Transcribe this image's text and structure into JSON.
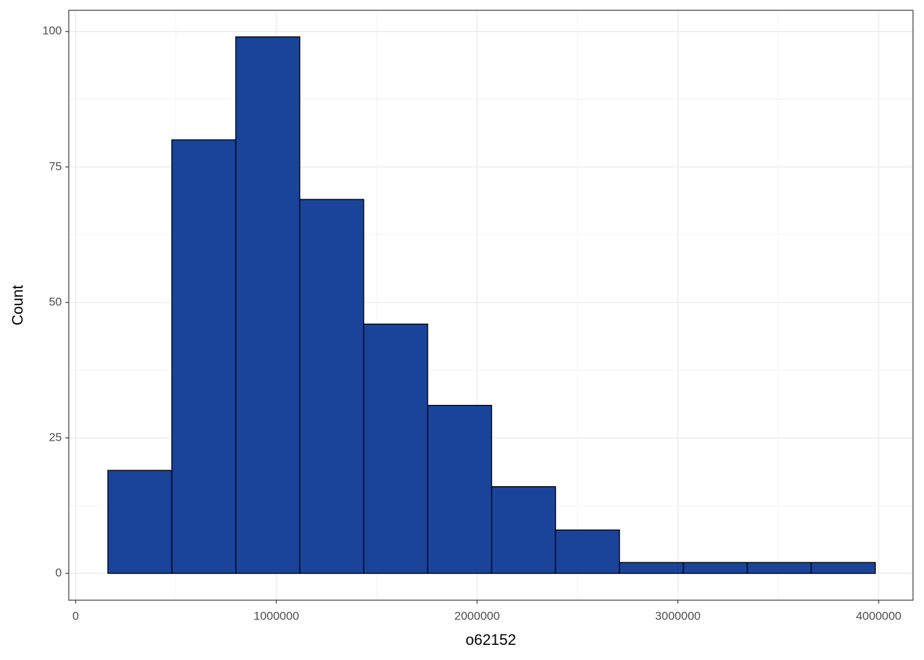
{
  "chart_data": {
    "type": "histogram",
    "x_label": "o62152",
    "y_label": "Count",
    "bins": [
      161000,
      479500,
      798000,
      1116500,
      1435000,
      1753500,
      2072000,
      2390500,
      2709000,
      3027500,
      3346000,
      3664500,
      3983000
    ],
    "counts": [
      19,
      80,
      99,
      69,
      46,
      31,
      16,
      8,
      2,
      2,
      2,
      2
    ],
    "color": "#1a4499",
    "xlim": [
      -34000,
      4171000
    ],
    "ylim": [
      -4.95,
      103.9
    ],
    "xticks": [
      0,
      1000000,
      2000000,
      3000000,
      4000000
    ],
    "yticks": [
      0,
      25,
      50,
      75,
      100
    ],
    "grid": true
  }
}
